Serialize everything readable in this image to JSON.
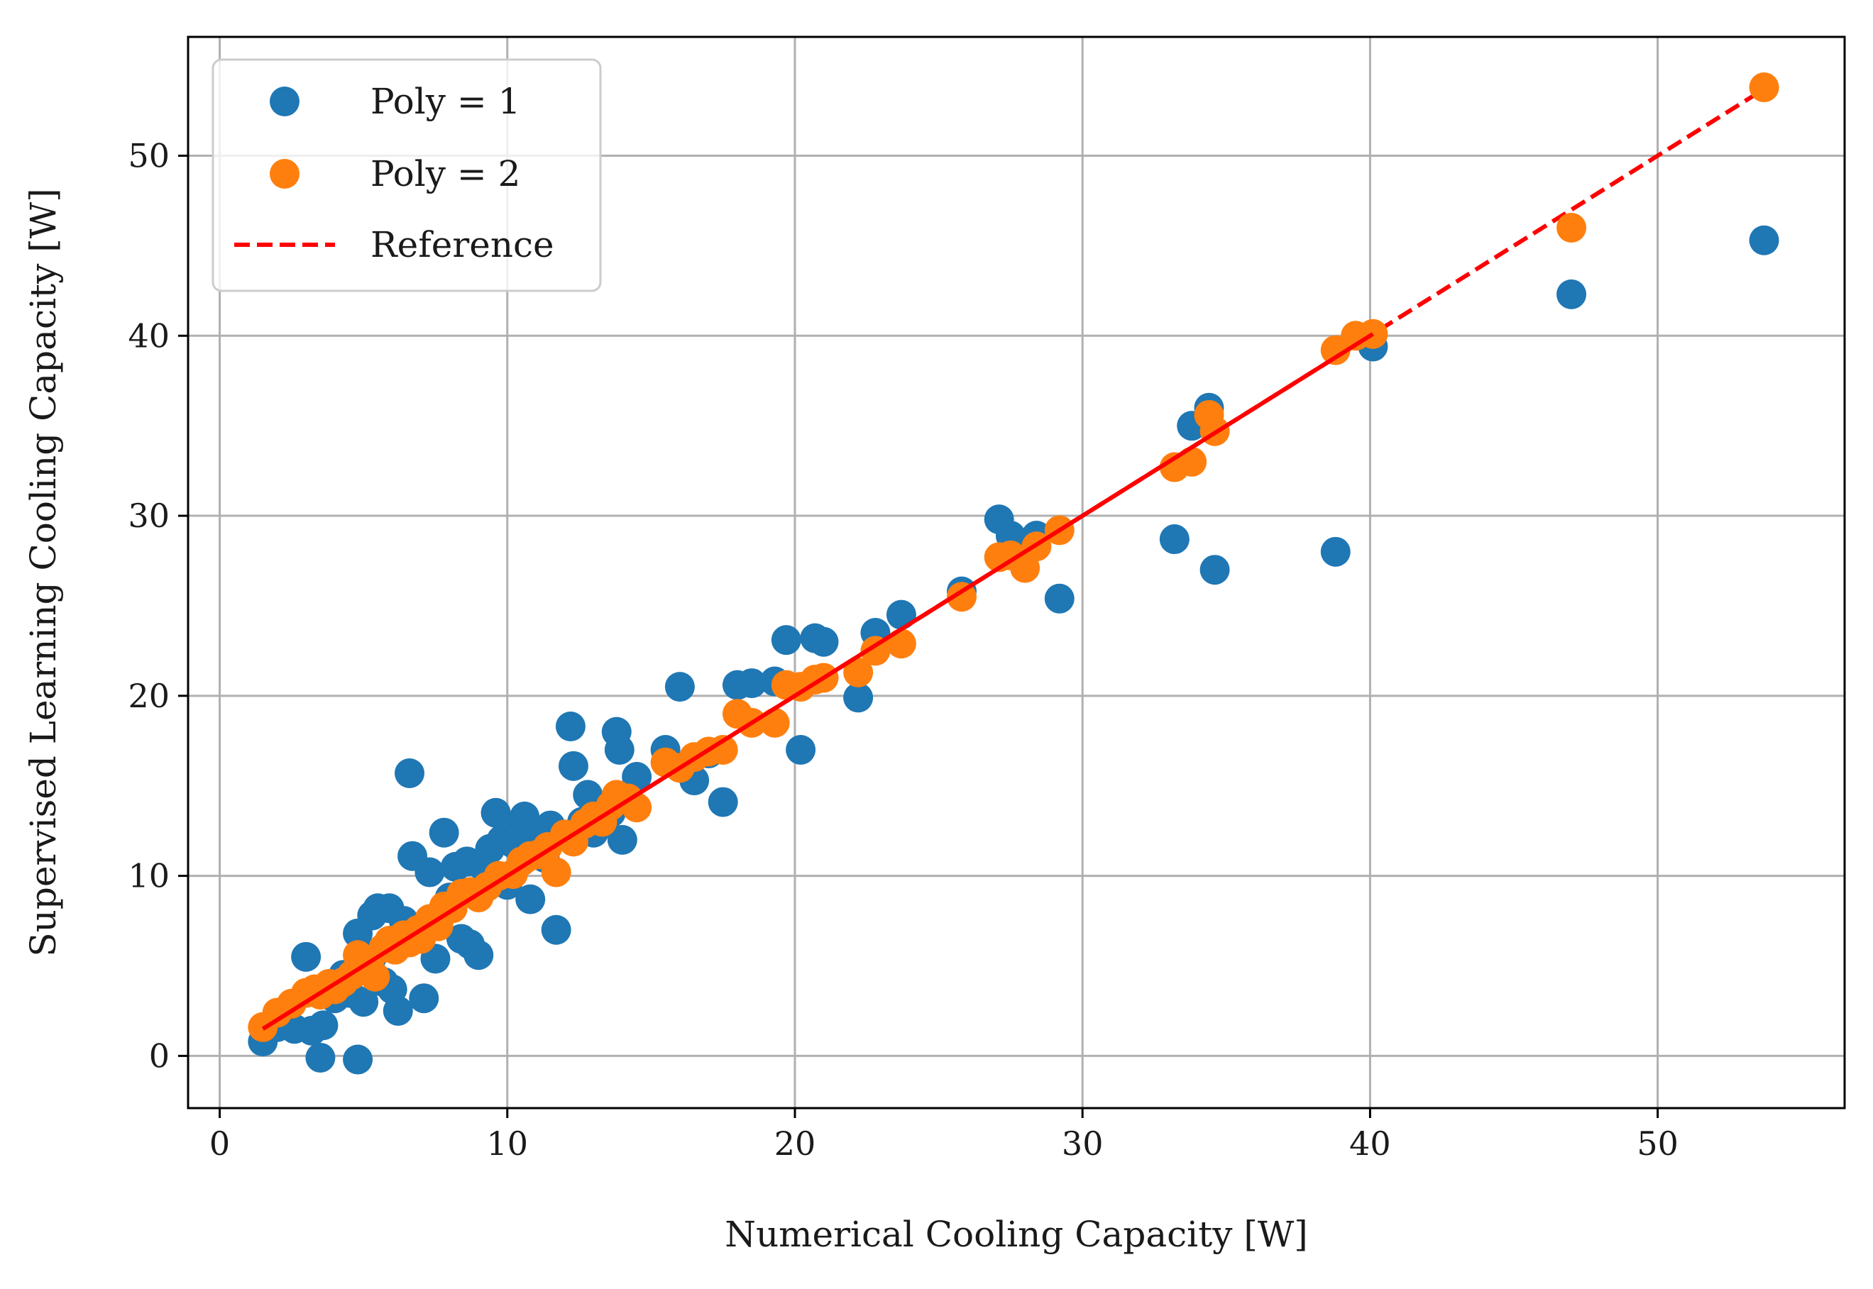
{
  "chart_data": {
    "type": "scatter",
    "xlabel": "Numerical Cooling Capacity [W]",
    "ylabel": "Supervised Learning Cooling Capacity [W]",
    "xlim": [
      -1.1,
      56.5
    ],
    "ylim": [
      -2.9,
      56.6
    ],
    "xticks": [
      0,
      10,
      20,
      30,
      40,
      50
    ],
    "yticks": [
      0,
      10,
      20,
      30,
      40,
      50
    ],
    "grid": true,
    "legend_position": "top-left",
    "colors": {
      "poly1": "#1f77b4",
      "poly2": "#ff7f0e",
      "reference": "#ff0000"
    },
    "series": [
      {
        "name": "Poly = 1",
        "kind": "points",
        "points": [
          [
            1.5,
            0.8
          ],
          [
            2.0,
            1.6
          ],
          [
            2.6,
            1.5
          ],
          [
            3.0,
            5.5
          ],
          [
            3.2,
            1.4
          ],
          [
            3.5,
            -0.1
          ],
          [
            3.6,
            1.7
          ],
          [
            4.0,
            3.2
          ],
          [
            4.3,
            4.5
          ],
          [
            4.5,
            3.5
          ],
          [
            4.8,
            6.8
          ],
          [
            4.8,
            -0.2
          ],
          [
            5.0,
            3.0
          ],
          [
            5.3,
            5.5
          ],
          [
            5.3,
            7.8
          ],
          [
            5.5,
            8.2
          ],
          [
            5.7,
            4.1
          ],
          [
            5.9,
            8.2
          ],
          [
            6.0,
            3.7
          ],
          [
            6.2,
            2.5
          ],
          [
            6.4,
            7.5
          ],
          [
            6.6,
            15.7
          ],
          [
            6.7,
            11.1
          ],
          [
            6.8,
            7.0
          ],
          [
            7.1,
            3.2
          ],
          [
            7.3,
            10.2
          ],
          [
            7.5,
            5.4
          ],
          [
            7.6,
            7.3
          ],
          [
            7.8,
            12.4
          ],
          [
            8.0,
            8.8
          ],
          [
            8.2,
            10.5
          ],
          [
            8.4,
            6.5
          ],
          [
            8.6,
            10.8
          ],
          [
            8.7,
            6.2
          ],
          [
            9.0,
            5.6
          ],
          [
            9.1,
            10.6
          ],
          [
            9.4,
            11.5
          ],
          [
            9.6,
            13.5
          ],
          [
            9.8,
            12.0
          ],
          [
            10.0,
            9.5
          ],
          [
            10.2,
            11.8
          ],
          [
            10.4,
            12.6
          ],
          [
            10.6,
            13.3
          ],
          [
            10.8,
            8.7
          ],
          [
            11.0,
            12.3
          ],
          [
            11.3,
            11.0
          ],
          [
            11.5,
            12.8
          ],
          [
            11.7,
            7.0
          ],
          [
            12.2,
            18.3
          ],
          [
            12.3,
            16.1
          ],
          [
            12.6,
            13.0
          ],
          [
            12.8,
            14.5
          ],
          [
            13.0,
            12.4
          ],
          [
            13.6,
            13.5
          ],
          [
            13.8,
            18.0
          ],
          [
            13.9,
            17.0
          ],
          [
            14.0,
            12.0
          ],
          [
            14.5,
            15.5
          ],
          [
            15.5,
            17.0
          ],
          [
            16.0,
            20.5
          ],
          [
            16.5,
            15.3
          ],
          [
            17.0,
            16.8
          ],
          [
            17.5,
            14.1
          ],
          [
            18.0,
            20.6
          ],
          [
            18.5,
            20.7
          ],
          [
            19.3,
            20.8
          ],
          [
            19.7,
            23.1
          ],
          [
            20.2,
            17.0
          ],
          [
            20.7,
            23.2
          ],
          [
            21.0,
            23.0
          ],
          [
            22.2,
            19.9
          ],
          [
            22.8,
            23.5
          ],
          [
            23.7,
            24.5
          ],
          [
            25.8,
            25.8
          ],
          [
            27.1,
            29.8
          ],
          [
            27.5,
            28.9
          ],
          [
            28.0,
            28.5
          ],
          [
            28.4,
            28.9
          ],
          [
            29.2,
            25.4
          ],
          [
            33.2,
            28.7
          ],
          [
            33.8,
            35.0
          ],
          [
            34.4,
            36.0
          ],
          [
            34.6,
            27.0
          ],
          [
            38.8,
            28.0
          ],
          [
            40.1,
            39.4
          ],
          [
            47.0,
            42.3
          ],
          [
            53.7,
            45.3
          ]
        ]
      },
      {
        "name": "Poly = 2",
        "kind": "points",
        "points": [
          [
            1.5,
            1.6
          ],
          [
            2.0,
            2.4
          ],
          [
            2.5,
            2.9
          ],
          [
            3.0,
            3.5
          ],
          [
            3.3,
            3.7
          ],
          [
            3.5,
            3.4
          ],
          [
            3.8,
            4.0
          ],
          [
            4.0,
            3.7
          ],
          [
            4.3,
            4.1
          ],
          [
            4.6,
            4.5
          ],
          [
            4.8,
            5.6
          ],
          [
            5.0,
            5.0
          ],
          [
            5.2,
            5.2
          ],
          [
            5.4,
            4.4
          ],
          [
            5.7,
            6.0
          ],
          [
            5.9,
            6.4
          ],
          [
            6.1,
            5.9
          ],
          [
            6.4,
            6.7
          ],
          [
            6.6,
            6.3
          ],
          [
            6.9,
            7.0
          ],
          [
            7.0,
            6.5
          ],
          [
            7.3,
            7.6
          ],
          [
            7.6,
            7.2
          ],
          [
            7.8,
            8.3
          ],
          [
            8.1,
            8.2
          ],
          [
            8.4,
            9.0
          ],
          [
            8.7,
            9.1
          ],
          [
            9.0,
            8.8
          ],
          [
            9.3,
            9.4
          ],
          [
            9.7,
            10.0
          ],
          [
            10.2,
            10.1
          ],
          [
            10.5,
            10.8
          ],
          [
            10.8,
            11.1
          ],
          [
            11.1,
            11.2
          ],
          [
            11.4,
            11.6
          ],
          [
            11.7,
            10.2
          ],
          [
            12.0,
            12.3
          ],
          [
            12.3,
            11.9
          ],
          [
            12.7,
            12.9
          ],
          [
            13.0,
            13.3
          ],
          [
            13.3,
            13.0
          ],
          [
            13.6,
            13.9
          ],
          [
            13.8,
            14.5
          ],
          [
            14.2,
            14.3
          ],
          [
            14.5,
            13.8
          ],
          [
            15.5,
            16.3
          ],
          [
            16.0,
            16.0
          ],
          [
            16.5,
            16.6
          ],
          [
            17.0,
            16.9
          ],
          [
            17.5,
            17.0
          ],
          [
            18.0,
            19.0
          ],
          [
            18.5,
            18.5
          ],
          [
            19.3,
            18.5
          ],
          [
            19.7,
            20.6
          ],
          [
            20.2,
            20.5
          ],
          [
            20.7,
            20.9
          ],
          [
            21.0,
            21.0
          ],
          [
            22.2,
            21.3
          ],
          [
            22.8,
            22.5
          ],
          [
            23.7,
            22.9
          ],
          [
            25.8,
            25.5
          ],
          [
            27.1,
            27.7
          ],
          [
            27.5,
            27.8
          ],
          [
            28.0,
            27.1
          ],
          [
            28.4,
            28.3
          ],
          [
            29.2,
            29.2
          ],
          [
            33.2,
            32.7
          ],
          [
            33.8,
            33.0
          ],
          [
            34.4,
            35.6
          ],
          [
            34.6,
            34.7
          ],
          [
            38.8,
            39.2
          ],
          [
            39.5,
            40.0
          ],
          [
            40.1,
            40.1
          ],
          [
            47.0,
            46.0
          ],
          [
            53.7,
            53.8
          ]
        ]
      },
      {
        "name": "Reference",
        "kind": "dashed-line",
        "points": [
          [
            1.5,
            1.5
          ],
          [
            53.7,
            53.7
          ]
        ]
      },
      {
        "kind": "solid-line",
        "points": [
          [
            1.5,
            1.5
          ],
          [
            40.1,
            40.1
          ]
        ]
      }
    ]
  }
}
